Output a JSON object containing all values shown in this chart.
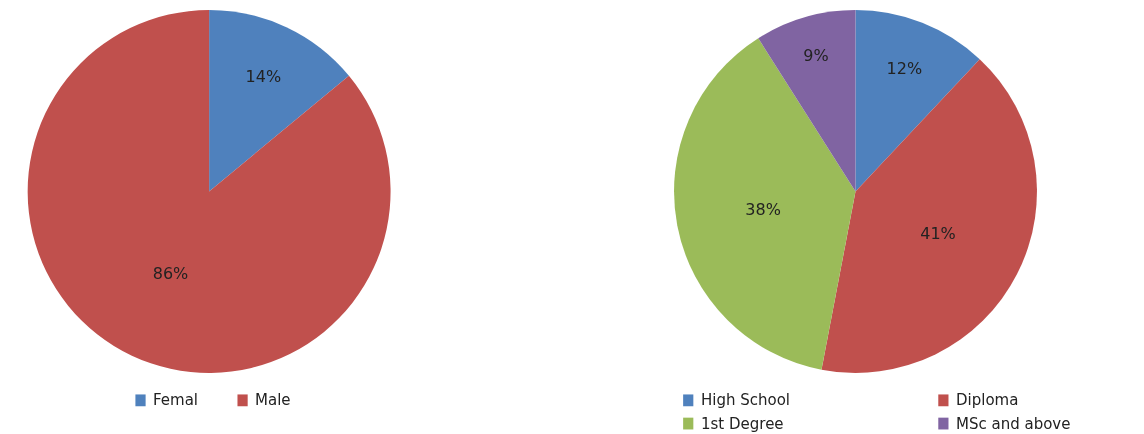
{
  "chart_data": [
    {
      "type": "pie",
      "categories": [
        "Femal",
        "Male"
      ],
      "values": [
        14,
        86
      ],
      "colors": [
        "#4f81bd",
        "#c0504d"
      ],
      "value_labels": [
        "14%",
        "86%"
      ],
      "legend": "bottom"
    },
    {
      "type": "pie",
      "categories": [
        "High School",
        "Diploma",
        "1st Degree",
        "MSc and above"
      ],
      "values": [
        12,
        41,
        38,
        9
      ],
      "colors": [
        "#4f81bd",
        "#c0504d",
        "#9bbb59",
        "#8064a2"
      ],
      "value_labels": [
        "12%",
        "41%",
        "38%",
        "9%"
      ],
      "legend": "bottom"
    }
  ]
}
